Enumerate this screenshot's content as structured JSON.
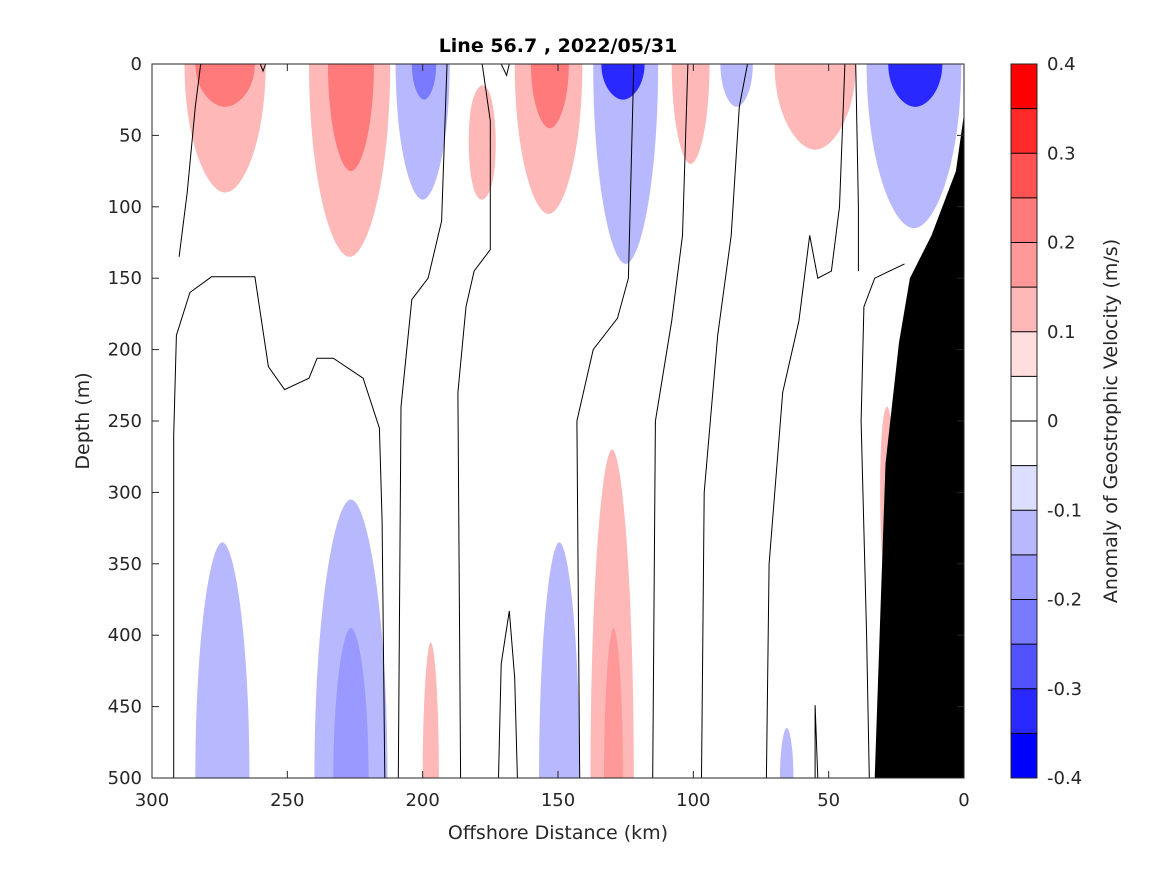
{
  "chart_data": {
    "type": "heatmap",
    "title": "Line 56.7 , 2022/05/31",
    "xlabel": "Offshore Distance (km)",
    "ylabel": "Depth (m)",
    "colorbar_label": "Anomaly of Geostrophic Velocity (m/s)",
    "xlim": [
      300,
      0
    ],
    "ylim": [
      0,
      500
    ],
    "x_reversed": true,
    "y_reversed": true,
    "x_ticks": [
      "300",
      "250",
      "200",
      "150",
      "100",
      "50",
      "0"
    ],
    "y_ticks": [
      "0",
      "50",
      "100",
      "150",
      "200",
      "250",
      "300",
      "350",
      "400",
      "450",
      "500"
    ],
    "colorbar_ticks": [
      "0.4",
      "0.3",
      "0.2",
      "0.1",
      "0",
      "-0.1",
      "-0.2",
      "-0.3",
      "-0.4"
    ],
    "colorbar_levels": [
      {
        "range": [
          0.35,
          0.4
        ],
        "color": "#ff0000"
      },
      {
        "range": [
          0.3,
          0.35
        ],
        "color": "#ff2929"
      },
      {
        "range": [
          0.25,
          0.3
        ],
        "color": "#ff5252"
      },
      {
        "range": [
          0.2,
          0.25
        ],
        "color": "#ff7a7a"
      },
      {
        "range": [
          0.15,
          0.2
        ],
        "color": "#ff9999"
      },
      {
        "range": [
          0.1,
          0.15
        ],
        "color": "#ffb8b8"
      },
      {
        "range": [
          0.05,
          0.1
        ],
        "color": "#ffdede"
      },
      {
        "range": [
          0.0,
          0.05
        ],
        "color": "#ffffff"
      },
      {
        "range": [
          -0.05,
          0.0
        ],
        "color": "#ffffff"
      },
      {
        "range": [
          -0.1,
          -0.05
        ],
        "color": "#dedeff"
      },
      {
        "range": [
          -0.15,
          -0.1
        ],
        "color": "#b8b8ff"
      },
      {
        "range": [
          -0.2,
          -0.15
        ],
        "color": "#9999ff"
      },
      {
        "range": [
          -0.25,
          -0.2
        ],
        "color": "#7a7aff"
      },
      {
        "range": [
          -0.3,
          -0.25
        ],
        "color": "#5252ff"
      },
      {
        "range": [
          -0.35,
          -0.3
        ],
        "color": "#2929ff"
      },
      {
        "range": [
          -0.4,
          -0.35
        ],
        "color": "#0000ff"
      }
    ],
    "anomaly_regions": [
      {
        "sign": "positive",
        "level": 0.1,
        "x_range": [
          288,
          258
        ],
        "depth_range": [
          0,
          90
        ]
      },
      {
        "sign": "positive",
        "level": 0.2,
        "x_range": [
          284,
          262
        ],
        "depth_range": [
          0,
          30
        ]
      },
      {
        "sign": "positive",
        "level": 0.1,
        "x_range": [
          242,
          212
        ],
        "depth_range": [
          0,
          135
        ]
      },
      {
        "sign": "positive",
        "level": 0.2,
        "x_range": [
          235,
          218
        ],
        "depth_range": [
          0,
          75
        ]
      },
      {
        "sign": "negative",
        "level": -0.1,
        "x_range": [
          210,
          190
        ],
        "depth_range": [
          0,
          95
        ]
      },
      {
        "sign": "negative",
        "level": -0.2,
        "x_range": [
          204,
          195
        ],
        "depth_range": [
          0,
          25
        ]
      },
      {
        "sign": "positive",
        "level": 0.1,
        "x_range": [
          183,
          173
        ],
        "depth_range": [
          15,
          95
        ]
      },
      {
        "sign": "positive",
        "level": 0.1,
        "x_range": [
          166,
          141
        ],
        "depth_range": [
          0,
          105
        ]
      },
      {
        "sign": "positive",
        "level": 0.2,
        "x_range": [
          160,
          146
        ],
        "depth_range": [
          0,
          45
        ]
      },
      {
        "sign": "negative",
        "level": -0.1,
        "x_range": [
          137,
          113
        ],
        "depth_range": [
          0,
          140
        ]
      },
      {
        "sign": "negative",
        "level": -0.3,
        "x_range": [
          134,
          118
        ],
        "depth_range": [
          0,
          25
        ]
      },
      {
        "sign": "positive",
        "level": 0.1,
        "x_range": [
          108,
          94
        ],
        "depth_range": [
          0,
          70
        ]
      },
      {
        "sign": "negative",
        "level": -0.1,
        "x_range": [
          90,
          78
        ],
        "depth_range": [
          0,
          30
        ]
      },
      {
        "sign": "positive",
        "level": 0.1,
        "x_range": [
          70,
          40
        ],
        "depth_range": [
          0,
          60
        ]
      },
      {
        "sign": "negative",
        "level": -0.1,
        "x_range": [
          36,
          1
        ],
        "depth_range": [
          0,
          115
        ]
      },
      {
        "sign": "negative",
        "level": -0.3,
        "x_range": [
          28,
          8
        ],
        "depth_range": [
          0,
          30
        ]
      },
      {
        "sign": "positive",
        "level": 0.1,
        "x_range": [
          138,
          122
        ],
        "depth_range": [
          270,
          500
        ]
      },
      {
        "sign": "positive",
        "level": 0.15,
        "x_range": [
          133,
          126
        ],
        "depth_range": [
          395,
          500
        ]
      },
      {
        "sign": "negative",
        "level": -0.1,
        "x_range": [
          284,
          264
        ],
        "depth_range": [
          335,
          500
        ]
      },
      {
        "sign": "negative",
        "level": -0.1,
        "x_range": [
          240,
          213
        ],
        "depth_range": [
          305,
          500
        ]
      },
      {
        "sign": "negative",
        "level": -0.15,
        "x_range": [
          233,
          220
        ],
        "depth_range": [
          395,
          500
        ]
      },
      {
        "sign": "negative",
        "level": -0.1,
        "x_range": [
          157,
          142
        ],
        "depth_range": [
          335,
          500
        ]
      },
      {
        "sign": "positive",
        "level": 0.1,
        "x_range": [
          200,
          194
        ],
        "depth_range": [
          405,
          500
        ]
      },
      {
        "sign": "positive",
        "level": 0.1,
        "x_range": [
          31,
          26
        ],
        "depth_range": [
          240,
          360
        ]
      },
      {
        "sign": "negative",
        "level": -0.1,
        "x_range": [
          68,
          63
        ],
        "depth_range": [
          465,
          500
        ]
      }
    ],
    "bathymetry_color": "#000000"
  }
}
